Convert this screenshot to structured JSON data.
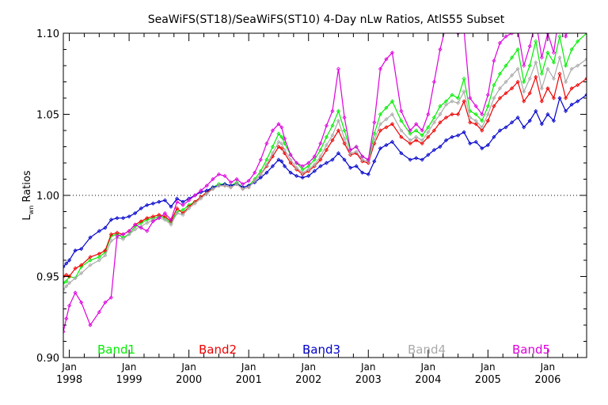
{
  "chart_data": {
    "type": "line",
    "title": "SeaWiFS(ST18)/SeaWiFS(ST10) 4-Day nLw Ratios, AtlS55 Subset",
    "ylabel_main": "L",
    "ylabel_sub": "wn",
    "ylabel_rest": " Ratios",
    "ylim": [
      0.9,
      1.1
    ],
    "xlim": [
      1997.9,
      2006.65
    ],
    "yticks": [
      {
        "value": 0.9,
        "label": "0.90"
      },
      {
        "value": 0.95,
        "label": "0.95"
      },
      {
        "value": 1.0,
        "label": "1.00"
      },
      {
        "value": 1.05,
        "label": "1.05"
      },
      {
        "value": 1.1,
        "label": "1.10"
      }
    ],
    "xticks": [
      {
        "value": 1998,
        "month": "Jan",
        "year": "1998"
      },
      {
        "value": 1999,
        "month": "Jan",
        "year": "1999"
      },
      {
        "value": 2000,
        "month": "Jan",
        "year": "2000"
      },
      {
        "value": 2001,
        "month": "Jan",
        "year": "2001"
      },
      {
        "value": 2002,
        "month": "Jan",
        "year": "2002"
      },
      {
        "value": 2003,
        "month": "Jan",
        "year": "2003"
      },
      {
        "value": 2004,
        "month": "Jan",
        "year": "2004"
      },
      {
        "value": 2005,
        "month": "Jan",
        "year": "2005"
      },
      {
        "value": 2006,
        "month": "Jan",
        "year": "2006"
      }
    ],
    "reference_line": 1.0,
    "series": [
      {
        "name": "Band1",
        "color": "#00ee00",
        "x": [
          1997.9,
          1997.95,
          1998.0,
          1998.1,
          1998.2,
          1998.35,
          1998.5,
          1998.6,
          1998.7,
          1998.8,
          1998.9,
          1999.0,
          1999.1,
          1999.2,
          1999.3,
          1999.4,
          1999.5,
          1999.6,
          1999.7,
          1999.8,
          1999.9,
          2000.0,
          2000.1,
          2000.2,
          2000.3,
          2000.4,
          2000.5,
          2000.6,
          2000.7,
          2000.8,
          2000.9,
          2001.0,
          2001.1,
          2001.2,
          2001.3,
          2001.4,
          2001.5,
          2001.55,
          2001.6,
          2001.7,
          2001.8,
          2001.9,
          2002.0,
          2002.1,
          2002.2,
          2002.3,
          2002.4,
          2002.5,
          2002.6,
          2002.7,
          2002.8,
          2002.9,
          2003.0,
          2003.1,
          2003.2,
          2003.3,
          2003.4,
          2003.55,
          2003.7,
          2003.8,
          2003.9,
          2004.0,
          2004.1,
          2004.2,
          2004.3,
          2004.4,
          2004.5,
          2004.6,
          2004.7,
          2004.8,
          2004.9,
          2005.0,
          2005.1,
          2005.2,
          2005.3,
          2005.4,
          2005.5,
          2005.6,
          2005.7,
          2005.8,
          2005.9,
          2006.0,
          2006.1,
          2006.2,
          2006.3,
          2006.4,
          2006.5,
          2006.65
        ],
        "y": [
          0.946,
          0.947,
          0.95,
          0.949,
          0.956,
          0.96,
          0.962,
          0.965,
          0.975,
          0.976,
          0.974,
          0.976,
          0.981,
          0.983,
          0.985,
          0.986,
          0.987,
          0.986,
          0.983,
          0.99,
          0.991,
          0.994,
          0.996,
          0.999,
          1.002,
          1.005,
          1.007,
          1.007,
          1.006,
          1.008,
          1.005,
          1.006,
          1.01,
          1.015,
          1.022,
          1.03,
          1.038,
          1.036,
          1.032,
          1.025,
          1.02,
          1.016,
          1.018,
          1.022,
          1.028,
          1.036,
          1.043,
          1.052,
          1.04,
          1.028,
          1.03,
          1.024,
          1.022,
          1.038,
          1.05,
          1.054,
          1.058,
          1.046,
          1.038,
          1.04,
          1.037,
          1.042,
          1.048,
          1.055,
          1.058,
          1.062,
          1.06,
          1.072,
          1.052,
          1.05,
          1.046,
          1.055,
          1.068,
          1.075,
          1.08,
          1.085,
          1.09,
          1.07,
          1.08,
          1.095,
          1.075,
          1.088,
          1.082,
          1.098,
          1.08,
          1.09,
          1.095,
          1.1
        ]
      },
      {
        "name": "Band2",
        "color": "#ee0000",
        "x": [
          1997.9,
          1997.95,
          1998.0,
          1998.1,
          1998.2,
          1998.35,
          1998.5,
          1998.6,
          1998.7,
          1998.8,
          1998.9,
          1999.0,
          1999.1,
          1999.2,
          1999.3,
          1999.4,
          1999.5,
          1999.6,
          1999.7,
          1999.8,
          1999.9,
          2000.0,
          2000.1,
          2000.2,
          2000.3,
          2000.4,
          2000.5,
          2000.6,
          2000.7,
          2000.8,
          2000.9,
          2001.0,
          2001.1,
          2001.2,
          2001.3,
          2001.4,
          2001.5,
          2001.55,
          2001.6,
          2001.7,
          2001.8,
          2001.9,
          2002.0,
          2002.1,
          2002.2,
          2002.3,
          2002.4,
          2002.5,
          2002.6,
          2002.7,
          2002.8,
          2002.9,
          2003.0,
          2003.1,
          2003.2,
          2003.3,
          2003.4,
          2003.55,
          2003.7,
          2003.8,
          2003.9,
          2004.0,
          2004.1,
          2004.2,
          2004.3,
          2004.4,
          2004.5,
          2004.6,
          2004.7,
          2004.8,
          2004.9,
          2005.0,
          2005.1,
          2005.2,
          2005.3,
          2005.4,
          2005.5,
          2005.6,
          2005.7,
          2005.8,
          2005.9,
          2006.0,
          2006.1,
          2006.2,
          2006.3,
          2006.4,
          2006.5,
          2006.65
        ],
        "y": [
          0.95,
          0.951,
          0.95,
          0.955,
          0.957,
          0.962,
          0.964,
          0.966,
          0.976,
          0.977,
          0.976,
          0.978,
          0.982,
          0.984,
          0.986,
          0.987,
          0.988,
          0.987,
          0.984,
          0.992,
          0.989,
          0.993,
          0.996,
          0.999,
          1.002,
          1.004,
          1.006,
          1.006,
          1.005,
          1.007,
          1.004,
          1.005,
          1.009,
          1.013,
          1.018,
          1.024,
          1.03,
          1.029,
          1.026,
          1.02,
          1.016,
          1.013,
          1.015,
          1.018,
          1.022,
          1.028,
          1.034,
          1.04,
          1.032,
          1.025,
          1.026,
          1.021,
          1.02,
          1.032,
          1.04,
          1.042,
          1.044,
          1.036,
          1.032,
          1.034,
          1.032,
          1.036,
          1.04,
          1.045,
          1.048,
          1.05,
          1.05,
          1.058,
          1.045,
          1.044,
          1.04,
          1.046,
          1.055,
          1.06,
          1.063,
          1.066,
          1.07,
          1.058,
          1.063,
          1.073,
          1.058,
          1.066,
          1.06,
          1.075,
          1.06,
          1.066,
          1.068,
          1.072
        ]
      },
      {
        "name": "Band3",
        "color": "#0000cc",
        "x": [
          1997.9,
          1997.95,
          1998.0,
          1998.1,
          1998.2,
          1998.35,
          1998.5,
          1998.6,
          1998.7,
          1998.8,
          1998.9,
          1999.0,
          1999.1,
          1999.2,
          1999.3,
          1999.4,
          1999.5,
          1999.6,
          1999.7,
          1999.8,
          1999.9,
          2000.0,
          2000.1,
          2000.2,
          2000.3,
          2000.4,
          2000.5,
          2000.6,
          2000.7,
          2000.8,
          2000.9,
          2001.0,
          2001.1,
          2001.2,
          2001.3,
          2001.4,
          2001.5,
          2001.55,
          2001.6,
          2001.7,
          2001.8,
          2001.9,
          2002.0,
          2002.1,
          2002.2,
          2002.3,
          2002.4,
          2002.5,
          2002.6,
          2002.7,
          2002.8,
          2002.9,
          2003.0,
          2003.1,
          2003.2,
          2003.3,
          2003.4,
          2003.55,
          2003.7,
          2003.8,
          2003.9,
          2004.0,
          2004.1,
          2004.2,
          2004.3,
          2004.4,
          2004.5,
          2004.6,
          2004.7,
          2004.8,
          2004.9,
          2005.0,
          2005.1,
          2005.2,
          2005.3,
          2005.4,
          2005.5,
          2005.6,
          2005.7,
          2005.8,
          2005.9,
          2006.0,
          2006.1,
          2006.2,
          2006.3,
          2006.4,
          2006.5,
          2006.65
        ],
        "y": [
          0.956,
          0.958,
          0.96,
          0.966,
          0.967,
          0.974,
          0.978,
          0.98,
          0.985,
          0.986,
          0.986,
          0.987,
          0.989,
          0.992,
          0.994,
          0.995,
          0.996,
          0.997,
          0.993,
          0.998,
          0.996,
          0.998,
          1.0,
          1.002,
          1.003,
          1.005,
          1.006,
          1.007,
          1.006,
          1.007,
          1.005,
          1.006,
          1.008,
          1.011,
          1.014,
          1.018,
          1.022,
          1.021,
          1.018,
          1.014,
          1.012,
          1.011,
          1.012,
          1.015,
          1.018,
          1.02,
          1.022,
          1.026,
          1.022,
          1.017,
          1.018,
          1.014,
          1.013,
          1.021,
          1.029,
          1.031,
          1.033,
          1.026,
          1.022,
          1.023,
          1.022,
          1.025,
          1.028,
          1.03,
          1.034,
          1.036,
          1.037,
          1.039,
          1.032,
          1.033,
          1.029,
          1.031,
          1.036,
          1.04,
          1.042,
          1.045,
          1.048,
          1.042,
          1.046,
          1.052,
          1.044,
          1.05,
          1.046,
          1.06,
          1.052,
          1.056,
          1.058,
          1.062
        ]
      },
      {
        "name": "Band4",
        "color": "#aaaaaa",
        "x": [
          1997.9,
          1997.95,
          1998.0,
          1998.1,
          1998.2,
          1998.35,
          1998.5,
          1998.6,
          1998.7,
          1998.8,
          1998.9,
          1999.0,
          1999.1,
          1999.2,
          1999.3,
          1999.4,
          1999.5,
          1999.6,
          1999.7,
          1999.8,
          1999.9,
          2000.0,
          2000.1,
          2000.2,
          2000.3,
          2000.4,
          2000.5,
          2000.6,
          2000.7,
          2000.8,
          2000.9,
          2001.0,
          2001.1,
          2001.2,
          2001.3,
          2001.4,
          2001.5,
          2001.55,
          2001.6,
          2001.7,
          2001.8,
          2001.9,
          2002.0,
          2002.1,
          2002.2,
          2002.3,
          2002.4,
          2002.5,
          2002.6,
          2002.7,
          2002.8,
          2002.9,
          2003.0,
          2003.1,
          2003.2,
          2003.3,
          2003.4,
          2003.55,
          2003.7,
          2003.8,
          2003.9,
          2004.0,
          2004.1,
          2004.2,
          2004.3,
          2004.4,
          2004.5,
          2004.6,
          2004.7,
          2004.8,
          2004.9,
          2005.0,
          2005.1,
          2005.2,
          2005.3,
          2005.4,
          2005.5,
          2005.6,
          2005.7,
          2005.8,
          2005.9,
          2006.0,
          2006.1,
          2006.2,
          2006.3,
          2006.4,
          2006.5,
          2006.65
        ],
        "y": [
          0.942,
          0.944,
          0.946,
          0.949,
          0.952,
          0.957,
          0.96,
          0.963,
          0.972,
          0.974,
          0.973,
          0.976,
          0.979,
          0.981,
          0.983,
          0.985,
          0.986,
          0.985,
          0.982,
          0.989,
          0.988,
          0.992,
          0.995,
          0.998,
          1.001,
          1.004,
          1.006,
          1.006,
          1.005,
          1.007,
          1.004,
          1.005,
          1.009,
          1.013,
          1.019,
          1.026,
          1.033,
          1.032,
          1.028,
          1.022,
          1.017,
          1.014,
          1.016,
          1.019,
          1.024,
          1.031,
          1.037,
          1.046,
          1.035,
          1.026,
          1.027,
          1.022,
          1.021,
          1.034,
          1.044,
          1.047,
          1.05,
          1.04,
          1.034,
          1.036,
          1.034,
          1.039,
          1.045,
          1.05,
          1.056,
          1.058,
          1.057,
          1.064,
          1.048,
          1.046,
          1.042,
          1.05,
          1.06,
          1.066,
          1.07,
          1.074,
          1.078,
          1.064,
          1.072,
          1.082,
          1.066,
          1.078,
          1.072,
          1.085,
          1.07,
          1.078,
          1.08,
          1.084
        ]
      },
      {
        "name": "Band5",
        "color": "#dd00dd",
        "x": [
          1997.9,
          1997.95,
          1998.0,
          1998.1,
          1998.2,
          1998.35,
          1998.5,
          1998.6,
          1998.7,
          1998.8,
          1998.9,
          1999.0,
          1999.1,
          1999.2,
          1999.3,
          1999.4,
          1999.5,
          1999.6,
          1999.7,
          1999.8,
          1999.9,
          2000.0,
          2000.1,
          2000.2,
          2000.3,
          2000.4,
          2000.5,
          2000.6,
          2000.7,
          2000.8,
          2000.9,
          2001.0,
          2001.1,
          2001.2,
          2001.3,
          2001.4,
          2001.5,
          2001.55,
          2001.6,
          2001.7,
          2001.8,
          2001.9,
          2002.0,
          2002.1,
          2002.2,
          2002.3,
          2002.4,
          2002.5,
          2002.6,
          2002.7,
          2002.8,
          2002.9,
          2003.0,
          2003.1,
          2003.2,
          2003.3,
          2003.4,
          2003.55,
          2003.7,
          2003.8,
          2003.9,
          2004.0,
          2004.1,
          2004.2,
          2004.3,
          2004.4,
          2004.5,
          2004.6,
          2004.7,
          2004.8,
          2004.9,
          2005.0,
          2005.1,
          2005.2,
          2005.3,
          2005.4,
          2005.5,
          2005.6,
          2005.7,
          2005.8,
          2005.9,
          2006.0,
          2006.1,
          2006.2,
          2006.3,
          2006.4,
          2006.5,
          2006.65
        ],
        "y": [
          0.916,
          0.924,
          0.932,
          0.94,
          0.934,
          0.92,
          0.928,
          0.934,
          0.937,
          0.975,
          0.976,
          0.978,
          0.982,
          0.98,
          0.978,
          0.984,
          0.986,
          0.989,
          0.985,
          0.996,
          0.994,
          0.997,
          1.0,
          1.003,
          1.006,
          1.01,
          1.013,
          1.012,
          1.008,
          1.01,
          1.007,
          1.009,
          1.014,
          1.022,
          1.032,
          1.04,
          1.044,
          1.042,
          1.035,
          1.025,
          1.02,
          1.018,
          1.02,
          1.024,
          1.032,
          1.043,
          1.052,
          1.078,
          1.048,
          1.028,
          1.03,
          1.024,
          1.022,
          1.045,
          1.078,
          1.084,
          1.088,
          1.052,
          1.04,
          1.044,
          1.04,
          1.05,
          1.07,
          1.09,
          1.105,
          1.102,
          1.1,
          1.102,
          1.06,
          1.055,
          1.05,
          1.062,
          1.083,
          1.094,
          1.098,
          1.1,
          1.102,
          1.08,
          1.092,
          1.108,
          1.085,
          1.1,
          1.088,
          1.115,
          1.098,
          1.108,
          1.11,
          1.115
        ]
      }
    ]
  }
}
